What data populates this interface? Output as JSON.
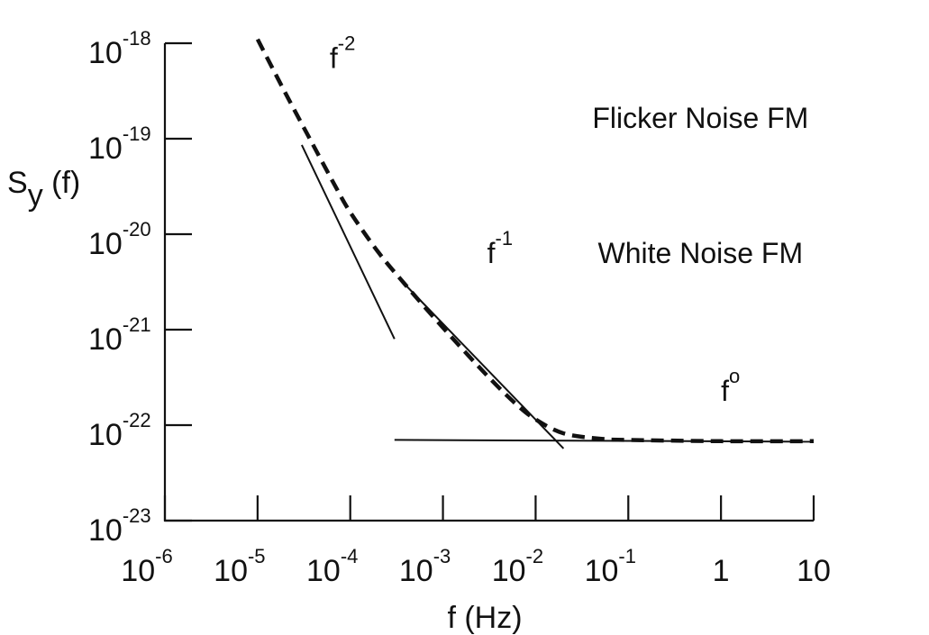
{
  "chart_data": {
    "type": "line",
    "title": "",
    "xlabel": "f  (Hz)",
    "ylabel": "S",
    "ylabel_subscript": "y",
    "ylabel_suffix": " (f)",
    "xscale": "log",
    "yscale": "log",
    "xlim": [
      1e-06,
      10
    ],
    "ylim": [
      1e-23,
      1e-18
    ],
    "grid": false,
    "x_ticks": [
      {
        "value": 1e-06,
        "base": "10",
        "exp": "-6"
      },
      {
        "value": 1e-05,
        "base": "10",
        "exp": "-5"
      },
      {
        "value": 0.0001,
        "base": "10",
        "exp": "-4"
      },
      {
        "value": 0.001,
        "base": "10",
        "exp": "-3"
      },
      {
        "value": 0.01,
        "base": "10",
        "exp": "-2"
      },
      {
        "value": 0.1,
        "base": "10",
        "exp": "-1"
      },
      {
        "value": 1,
        "base": "1",
        "exp": ""
      },
      {
        "value": 10,
        "base": "10",
        "exp": ""
      }
    ],
    "y_ticks": [
      {
        "value": 1e-18,
        "base": "10",
        "exp": "-18"
      },
      {
        "value": 1e-19,
        "base": "10",
        "exp": "-19"
      },
      {
        "value": 1e-20,
        "base": "10",
        "exp": "-20"
      },
      {
        "value": 1e-21,
        "base": "10",
        "exp": "-21"
      },
      {
        "value": 1e-22,
        "base": "10",
        "exp": "-22"
      },
      {
        "value": 1e-23,
        "base": "10",
        "exp": "-23"
      }
    ],
    "series": [
      {
        "style": "dashed",
        "x": [
          1e-05,
          2e-05,
          4e-05,
          7e-05,
          0.0001,
          0.0002,
          0.0004,
          0.001,
          0.003,
          0.006,
          0.01,
          0.02,
          0.05,
          0.1,
          1,
          10
        ],
        "y": [
          1.1e-18,
          3e-19,
          8.5e-20,
          3.1e-20,
          1.7e-20,
          6.5e-21,
          2.9e-21,
          1.05e-21,
          3.3e-22,
          1.7e-22,
          1.15e-22,
          8.2e-23,
          7.2e-23,
          7e-23,
          6.8e-23,
          6.8e-23
        ]
      }
    ],
    "reference_lines": [
      {
        "slope_label": "f^-2",
        "style": "solid",
        "x": [
          3e-05,
          0.0003
        ],
        "y": [
          8.6e-20,
          8e-22
        ]
      },
      {
        "slope_label": "f^-1",
        "style": "solid",
        "x": [
          0.0004,
          0.02
        ],
        "y": [
          2.9e-21,
          5.7e-23
        ]
      },
      {
        "slope_label": "f^0",
        "style": "solid",
        "x": [
          0.0003,
          10
        ],
        "y": [
          7e-23,
          6.7e-23
        ]
      }
    ],
    "annotations": [
      {
        "name": "f-2-label",
        "base": "f",
        "exp": "-2",
        "x": 6e-05,
        "y": 5.5e-19
      },
      {
        "name": "f-1-label",
        "base": "f",
        "exp": "-1",
        "x": 0.003,
        "y": 5e-21
      },
      {
        "name": "f0-label",
        "base": "f",
        "exp": "o",
        "x": 1,
        "y": 1.8e-22
      },
      {
        "name": "flicker-noise-label",
        "text": "Flicker Noise FM",
        "x": 0.6,
        "y": 1.3e-19
      },
      {
        "name": "white-noise-label",
        "text": "White Noise FM",
        "x": 0.6,
        "y": 5e-21
      }
    ]
  }
}
